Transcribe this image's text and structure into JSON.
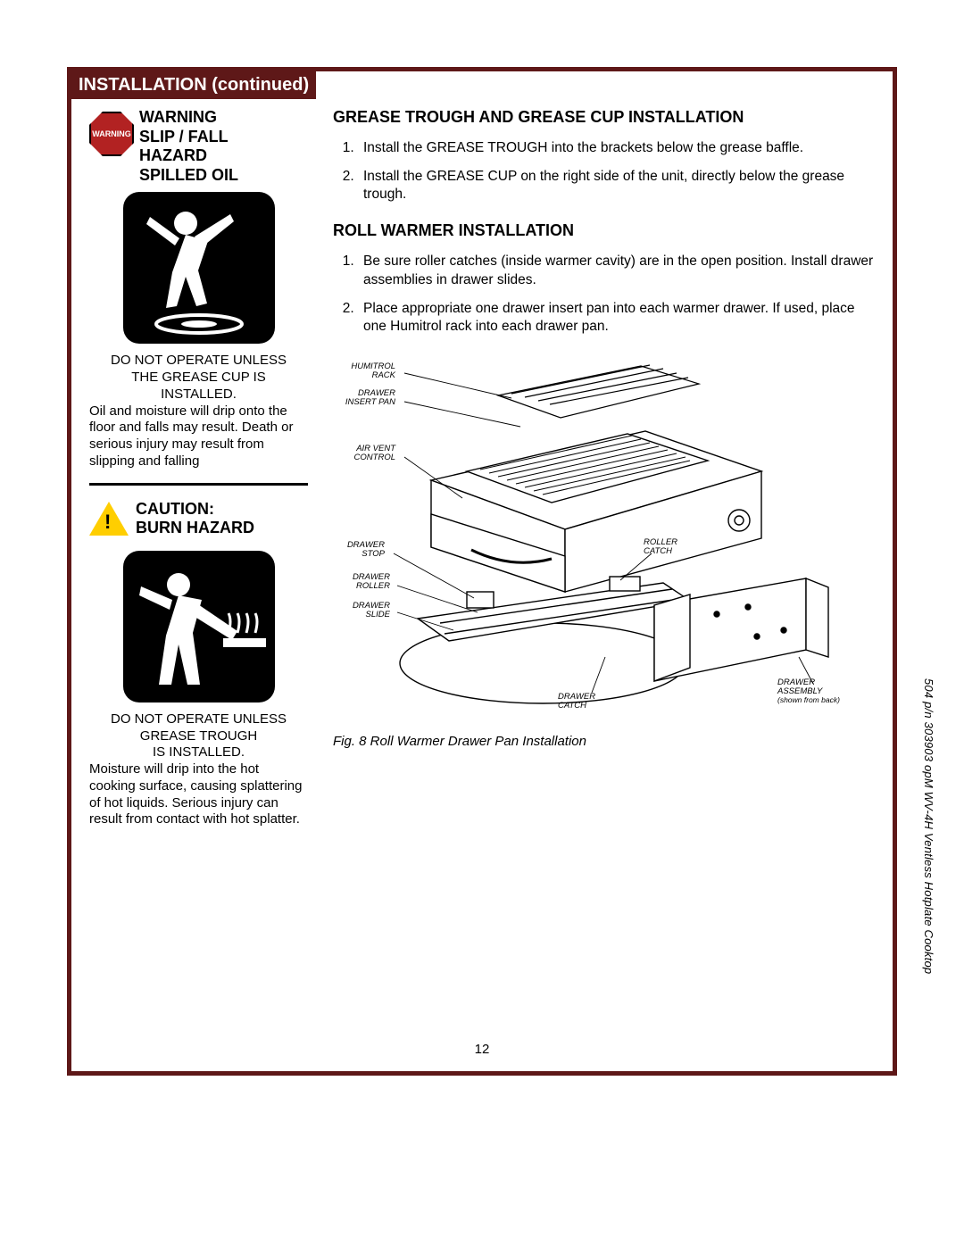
{
  "header": {
    "title": "INSTALLATION (continued)"
  },
  "warning": {
    "octagon_text": "WARNING",
    "title_lines": [
      "WARNING",
      "SLIP / FALL",
      "HAZARD",
      "SPILLED OIL"
    ],
    "caps_lines": [
      "DO NOT OPERATE UNLESS",
      "THE GREASE CUP IS",
      "INSTALLED."
    ],
    "body": "Oil and moisture will drip onto the floor and falls may result. Death or serious injury may result from slipping and falling"
  },
  "caution": {
    "title_lines": [
      "CAUTION:",
      "BURN HAZARD"
    ],
    "caps_lines": [
      "DO NOT OPERATE UNLESS",
      "GREASE TROUGH",
      "IS INSTALLED."
    ],
    "body": "Moisture will drip into the hot cooking surface, causing splattering of hot liquids. Serious injury can result from contact with hot splatter."
  },
  "sections": {
    "grease": {
      "heading": "GREASE TROUGH AND GREASE CUP INSTALLATION",
      "steps": [
        "Install the GREASE TROUGH into the brackets below the grease baffle.",
        "Install the GREASE CUP  on the right side of the unit, directly below the grease trough."
      ]
    },
    "roll": {
      "heading": "ROLL WARMER INSTALLATION",
      "steps": [
        "Be sure roller catches (inside warmer cavity) are in the open position. Install drawer assemblies in drawer slides.",
        "Place appropriate one drawer insert pan into each warmer drawer. If used, place one Humitrol rack into each drawer pan."
      ]
    }
  },
  "figure": {
    "caption": "Fig. 8  Roll Warmer Drawer Pan Installation",
    "labels": {
      "humitrol": "HUMITROL\nRACK",
      "insert_pan": "DRAWER\nINSERT PAN",
      "air_vent": "AIR VENT\nCONTROL",
      "drawer_stop": "DRAWER\nSTOP",
      "drawer_roller": "DRAWER\nROLLER",
      "drawer_slide": "DRAWER\nSLIDE",
      "roller_catch": "ROLLER\nCATCH",
      "drawer_catch": "DRAWER\nCATCH",
      "drawer_assembly": "DRAWER\nASSEMBLY",
      "assembly_note": "(shown from back)"
    }
  },
  "footer": {
    "page_number": "12",
    "side_note": "504  p/n 303903 opM WV-4H Ventless Hotplate Cooktop"
  },
  "colors": {
    "frame": "#5e1818",
    "warning_red": "#b22222",
    "caution_yellow": "#ffce00",
    "black": "#000000",
    "white": "#ffffff"
  }
}
